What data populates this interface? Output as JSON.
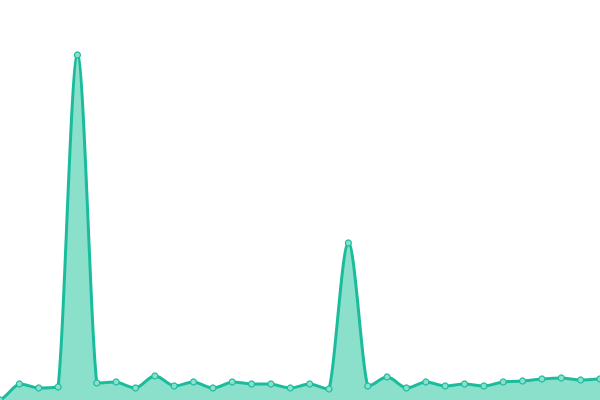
{
  "chart_data": {
    "type": "area",
    "title": "",
    "xlabel": "",
    "ylabel": "",
    "x": [
      0,
      1,
      2,
      3,
      4,
      5,
      6,
      7,
      8,
      9,
      10,
      11,
      12,
      13,
      14,
      15,
      16,
      17,
      18,
      19,
      20,
      21,
      22,
      23,
      24,
      25,
      26,
      27,
      28,
      29,
      30,
      31
    ],
    "series": [
      {
        "values": [
          0,
          16,
          12,
          13,
          345,
          17,
          18,
          12,
          24,
          14,
          18,
          12,
          18,
          16,
          16,
          12,
          16,
          11,
          157,
          14,
          23,
          12,
          18,
          14,
          16,
          14,
          18,
          19,
          21,
          22,
          20,
          21
        ]
      }
    ],
    "ylim": [
      0,
      400
    ],
    "grid": false,
    "axes_visible": false,
    "smooth": true,
    "colors": {
      "line": "#1abc9c",
      "fill": "#8be0cc",
      "marker_fill": "#8be0cc"
    }
  }
}
